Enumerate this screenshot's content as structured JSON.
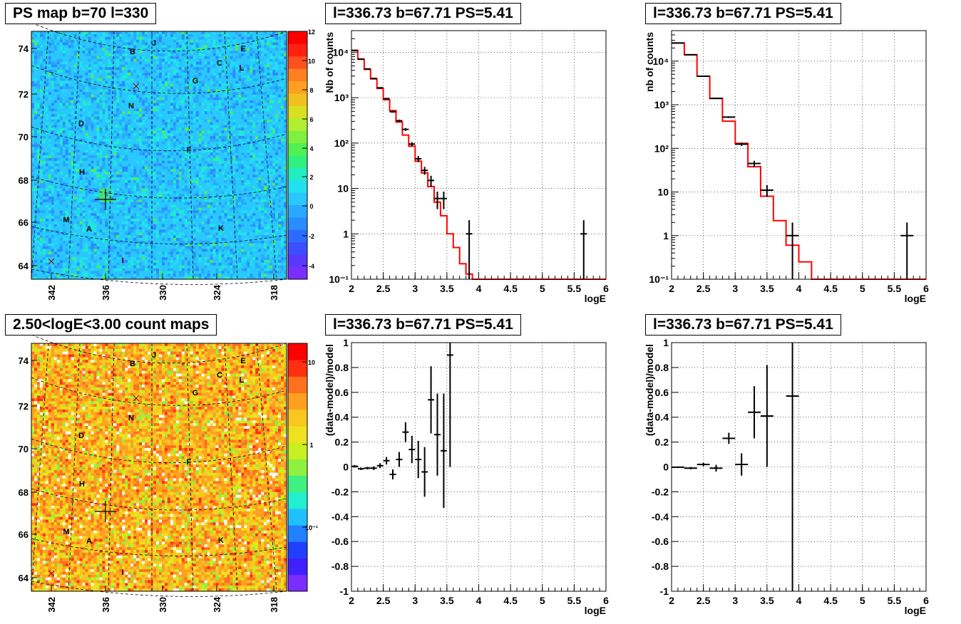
{
  "panels": {
    "ps_map": {
      "title": "PS map b=70 l=330",
      "y_ticks": [
        "64",
        "66",
        "68",
        "70",
        "72",
        "74"
      ],
      "x_ticks": [
        "342",
        "336",
        "330",
        "324",
        "318"
      ],
      "colorbar_ticks": [
        "-4",
        "-2",
        "0",
        "2",
        "4",
        "6",
        "8",
        "10",
        "12"
      ],
      "source_labels": [
        "B",
        "J",
        "E",
        "C",
        "L",
        "G",
        "N",
        "D",
        "F",
        "H",
        "M",
        "A",
        "K",
        "I"
      ]
    },
    "count_map": {
      "title": "2.50<logE<3.00 count maps",
      "y_ticks": [
        "64",
        "66",
        "68",
        "70",
        "72",
        "74"
      ],
      "x_ticks": [
        "342",
        "336",
        "330",
        "324",
        "318"
      ],
      "colorbar_ticks": [
        "10",
        "1",
        "10⁻¹"
      ],
      "source_labels": [
        "B",
        "J",
        "E",
        "C",
        "L",
        "G",
        "N",
        "D",
        "F",
        "H",
        "M",
        "A",
        "K",
        "I"
      ]
    },
    "spec_left": {
      "title": "l=336.73 b=67.71 PS=5.41"
    },
    "spec_right": {
      "title": "l=336.73 b=67.71 PS=5.41"
    },
    "resid_left": {
      "title": "l=336.73 b=67.71 PS=5.41"
    },
    "resid_right": {
      "title": "l=336.73 b=67.71 PS=5.41"
    }
  },
  "chart_data": [
    {
      "id": "spec_left",
      "type": "line",
      "title": "l=336.73 b=67.71 PS=5.41",
      "xlabel": "logE",
      "ylabel": "Nb of counts",
      "xlim": [
        2,
        6
      ],
      "ylim": [
        0.1,
        30000
      ],
      "yscale": "log",
      "grid": true,
      "x_ticks": [
        "2",
        "2.5",
        "3",
        "3.5",
        "4",
        "4.5",
        "5",
        "5.5",
        "6"
      ],
      "y_ticks": [
        "10⁻¹",
        "1",
        "10",
        "10²",
        "10³",
        "10⁴"
      ],
      "model_color": "#ff0000",
      "data_color": "#000000",
      "model_bin_edges": [
        2.0,
        2.1,
        2.2,
        2.3,
        2.4,
        2.5,
        2.6,
        2.7,
        2.8,
        2.9,
        3.0,
        3.1,
        3.2,
        3.3,
        3.4,
        3.5,
        3.6,
        3.7,
        3.8,
        3.9,
        4.0,
        4.1,
        4.2,
        6.0
      ],
      "model_values": [
        11000,
        7000,
        4200,
        2600,
        1600,
        900,
        520,
        290,
        150,
        85,
        40,
        22,
        11,
        5,
        2.5,
        1.0,
        0.5,
        0.22,
        0.13,
        0.1,
        0.1,
        0.1,
        0.1
      ],
      "data_points": [
        {
          "x": 2.05,
          "y": 11000,
          "xerr": 0.05,
          "yerr_lo": 105,
          "yerr_hi": 105
        },
        {
          "x": 2.15,
          "y": 7100,
          "xerr": 0.05,
          "yerr_lo": 84,
          "yerr_hi": 84
        },
        {
          "x": 2.25,
          "y": 4300,
          "xerr": 0.05,
          "yerr_lo": 66,
          "yerr_hi": 66
        },
        {
          "x": 2.35,
          "y": 2650,
          "xerr": 0.05,
          "yerr_lo": 51,
          "yerr_hi": 51
        },
        {
          "x": 2.45,
          "y": 1650,
          "xerr": 0.05,
          "yerr_lo": 41,
          "yerr_hi": 41
        },
        {
          "x": 2.55,
          "y": 950,
          "xerr": 0.05,
          "yerr_lo": 31,
          "yerr_hi": 31
        },
        {
          "x": 2.65,
          "y": 490,
          "xerr": 0.05,
          "yerr_lo": 22,
          "yerr_hi": 22
        },
        {
          "x": 2.75,
          "y": 310,
          "xerr": 0.05,
          "yerr_lo": 18,
          "yerr_hi": 18
        },
        {
          "x": 2.85,
          "y": 200,
          "xerr": 0.05,
          "yerr_lo": 14,
          "yerr_hi": 14
        },
        {
          "x": 2.95,
          "y": 95,
          "xerr": 0.05,
          "yerr_lo": 10,
          "yerr_hi": 10
        },
        {
          "x": 3.05,
          "y": 45,
          "xerr": 0.05,
          "yerr_lo": 7,
          "yerr_hi": 7
        },
        {
          "x": 3.15,
          "y": 25,
          "xerr": 0.05,
          "yerr_lo": 5,
          "yerr_hi": 5
        },
        {
          "x": 3.25,
          "y": 15,
          "xerr": 0.05,
          "yerr_lo": 4,
          "yerr_hi": 4
        },
        {
          "x": 3.35,
          "y": 6,
          "xerr": 0.05,
          "yerr_lo": 2.5,
          "yerr_hi": 2.5
        },
        {
          "x": 3.45,
          "y": 6,
          "xerr": 0.05,
          "yerr_lo": 2.5,
          "yerr_hi": 2.5
        },
        {
          "x": 3.85,
          "y": 1,
          "xerr": 0.05,
          "yerr_lo": 0.99,
          "yerr_hi": 1
        },
        {
          "x": 5.65,
          "y": 1,
          "xerr": 0.05,
          "yerr_lo": 0.99,
          "yerr_hi": 1
        }
      ]
    },
    {
      "id": "spec_right",
      "type": "line",
      "title": "l=336.73 b=67.71 PS=5.41",
      "xlabel": "logE",
      "ylabel": "nb of counts",
      "xlim": [
        2,
        6
      ],
      "ylim": [
        0.1,
        50000
      ],
      "yscale": "log",
      "grid": true,
      "x_ticks": [
        "2",
        "2.5",
        "3",
        "3.5",
        "4",
        "4.5",
        "5",
        "5.5",
        "6"
      ],
      "y_ticks": [
        "10⁻¹",
        "1",
        "10",
        "10²",
        "10³",
        "10⁴"
      ],
      "model_color": "#ff0000",
      "data_color": "#000000",
      "model_bin_edges": [
        2.0,
        2.2,
        2.4,
        2.6,
        2.8,
        3.0,
        3.2,
        3.4,
        3.6,
        3.8,
        4.0,
        4.2,
        6.0
      ],
      "model_values": [
        26000,
        14000,
        4500,
        1400,
        420,
        130,
        38,
        8,
        2.2,
        0.6,
        0.25,
        0.1
      ],
      "data_points": [
        {
          "x": 2.1,
          "y": 26000,
          "xerr": 0.1,
          "yerr_lo": 160,
          "yerr_hi": 160
        },
        {
          "x": 2.3,
          "y": 14000,
          "xerr": 0.1,
          "yerr_lo": 118,
          "yerr_hi": 118
        },
        {
          "x": 2.5,
          "y": 4500,
          "xerr": 0.1,
          "yerr_lo": 67,
          "yerr_hi": 67
        },
        {
          "x": 2.7,
          "y": 1400,
          "xerr": 0.1,
          "yerr_lo": 37,
          "yerr_hi": 37
        },
        {
          "x": 2.9,
          "y": 520,
          "xerr": 0.1,
          "yerr_lo": 23,
          "yerr_hi": 23
        },
        {
          "x": 3.1,
          "y": 125,
          "xerr": 0.1,
          "yerr_lo": 11,
          "yerr_hi": 11
        },
        {
          "x": 3.3,
          "y": 45,
          "xerr": 0.1,
          "yerr_lo": 7,
          "yerr_hi": 7
        },
        {
          "x": 3.5,
          "y": 11,
          "xerr": 0.1,
          "yerr_lo": 3.3,
          "yerr_hi": 3.3
        },
        {
          "x": 3.9,
          "y": 1,
          "xerr": 0.1,
          "yerr_lo": 0.99,
          "yerr_hi": 1
        },
        {
          "x": 5.7,
          "y": 1,
          "xerr": 0.1,
          "yerr_lo": 0.99,
          "yerr_hi": 1
        }
      ]
    },
    {
      "id": "resid_left",
      "type": "scatter",
      "title": "l=336.73 b=67.71 PS=5.41",
      "xlabel": "logE",
      "ylabel": "(data-model)/model",
      "xlim": [
        2,
        6
      ],
      "ylim": [
        -1,
        1
      ],
      "grid": true,
      "x_ticks": [
        "2",
        "2.5",
        "3",
        "3.5",
        "4",
        "4.5",
        "5",
        "5.5",
        "6"
      ],
      "y_ticks": [
        "-1",
        "-0.8",
        "-0.6",
        "-0.4",
        "-0.2",
        "0",
        "0.2",
        "0.4",
        "0.6",
        "0.8",
        "1"
      ],
      "data_color": "#000000",
      "data_points": [
        {
          "x": 2.05,
          "y": 0.005,
          "xerr": 0.05,
          "yerr": 0.01
        },
        {
          "x": 2.15,
          "y": -0.015,
          "xerr": 0.05,
          "yerr": 0.01
        },
        {
          "x": 2.25,
          "y": -0.01,
          "xerr": 0.05,
          "yerr": 0.01
        },
        {
          "x": 2.35,
          "y": -0.01,
          "xerr": 0.05,
          "yerr": 0.015
        },
        {
          "x": 2.45,
          "y": 0.01,
          "xerr": 0.05,
          "yerr": 0.02
        },
        {
          "x": 2.55,
          "y": 0.05,
          "xerr": 0.05,
          "yerr": 0.03
        },
        {
          "x": 2.65,
          "y": -0.06,
          "xerr": 0.05,
          "yerr": 0.04
        },
        {
          "x": 2.75,
          "y": 0.06,
          "xerr": 0.05,
          "yerr": 0.06
        },
        {
          "x": 2.85,
          "y": 0.28,
          "xerr": 0.05,
          "yerr": 0.08
        },
        {
          "x": 2.95,
          "y": 0.14,
          "xerr": 0.05,
          "yerr": 0.11
        },
        {
          "x": 3.05,
          "y": 0.06,
          "xerr": 0.05,
          "yerr": 0.15
        },
        {
          "x": 3.15,
          "y": -0.04,
          "xerr": 0.05,
          "yerr": 0.2
        },
        {
          "x": 3.25,
          "y": 0.54,
          "xerr": 0.05,
          "yerr": 0.27
        },
        {
          "x": 3.35,
          "y": 0.26,
          "xerr": 0.05,
          "yerr": 0.33
        },
        {
          "x": 3.45,
          "y": 0.13,
          "xerr": 0.05,
          "yerr": 0.46
        },
        {
          "x": 3.55,
          "y": 0.9,
          "xerr": 0.05,
          "yerr": 0.9
        }
      ]
    },
    {
      "id": "resid_right",
      "type": "scatter",
      "title": "l=336.73 b=67.71 PS=5.41",
      "xlabel": "logE",
      "ylabel": "(data-model)/model",
      "xlim": [
        2,
        6
      ],
      "ylim": [
        -1,
        1
      ],
      "grid": true,
      "x_ticks": [
        "2",
        "2.5",
        "3",
        "3.5",
        "4",
        "4.5",
        "5",
        "5.5",
        "6"
      ],
      "y_ticks": [
        "-1",
        "-0.8",
        "-0.6",
        "-0.4",
        "-0.2",
        "0",
        "0.2",
        "0.4",
        "0.6",
        "0.8",
        "1"
      ],
      "data_color": "#000000",
      "data_points": [
        {
          "x": 2.1,
          "y": -0.002,
          "xerr": 0.1,
          "yerr": 0.006
        },
        {
          "x": 2.3,
          "y": -0.01,
          "xerr": 0.1,
          "yerr": 0.009
        },
        {
          "x": 2.5,
          "y": 0.02,
          "xerr": 0.1,
          "yerr": 0.015
        },
        {
          "x": 2.7,
          "y": -0.01,
          "xerr": 0.1,
          "yerr": 0.027
        },
        {
          "x": 2.9,
          "y": 0.23,
          "xerr": 0.1,
          "yerr": 0.045
        },
        {
          "x": 3.1,
          "y": 0.02,
          "xerr": 0.1,
          "yerr": 0.09
        },
        {
          "x": 3.3,
          "y": 0.44,
          "xerr": 0.1,
          "yerr": 0.21
        },
        {
          "x": 3.5,
          "y": 0.41,
          "xerr": 0.1,
          "yerr": 0.41
        },
        {
          "x": 3.9,
          "y": 0.57,
          "xerr": 0.1,
          "yerr": 1.6
        }
      ]
    }
  ]
}
